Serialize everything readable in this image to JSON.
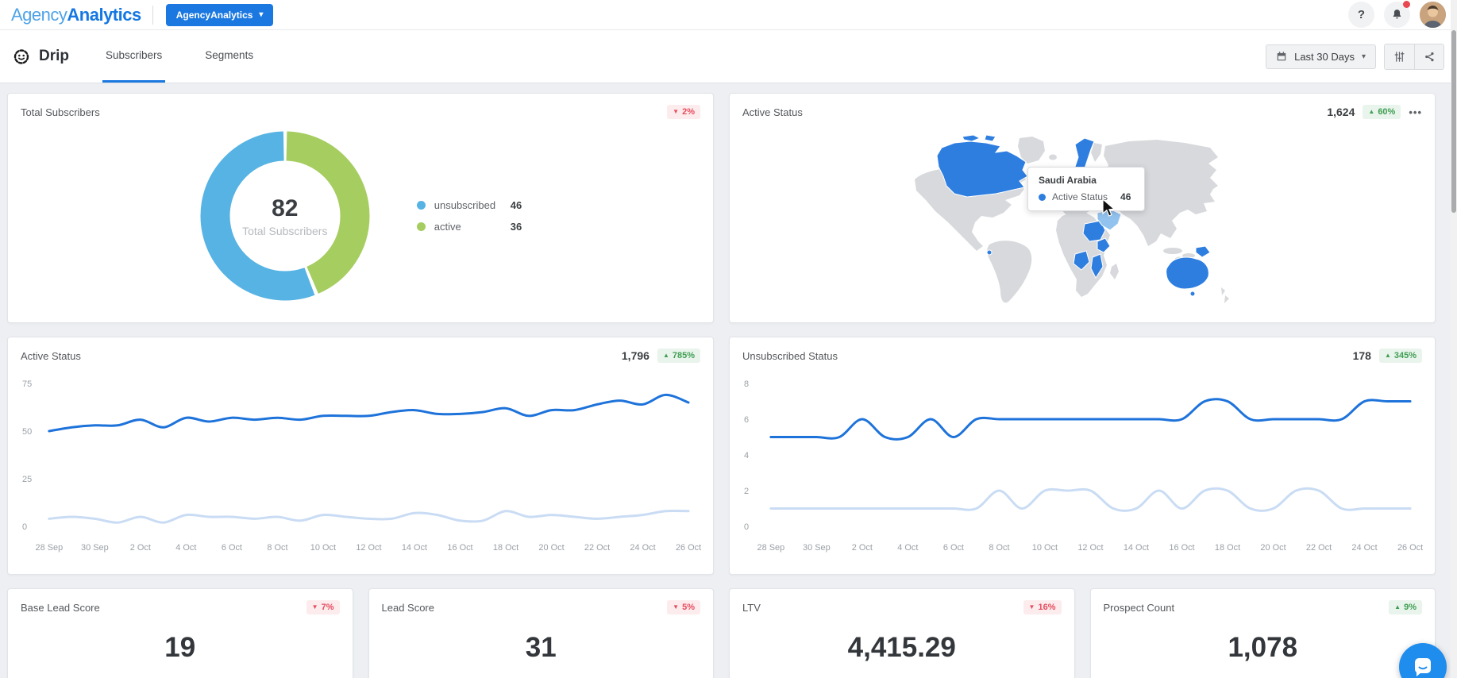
{
  "colors": {
    "accent_blue": "#1b78e0",
    "logo_light": "#4fa3e8",
    "logo_dark": "#1577e2",
    "line_current": "#1e73db",
    "line_previous": "#c9dcf4",
    "donut_unsubscribed": "#56b3e3",
    "donut_active": "#a6cd60",
    "badge_up_text": "#3f9e52",
    "badge_up_bg": "#e9f4ec",
    "badge_down_text": "#e64c5e",
    "badge_down_bg": "#fdeced",
    "map_country": "#d7d9dc",
    "map_active": "#2e7ee0",
    "map_hover": "#92c3ef",
    "page_bg": "#edeff2"
  },
  "icons": {
    "ellipsis": "•••",
    "caret_down": "▾",
    "arrow_up": "▲",
    "arrow_down": "▼"
  },
  "header": {
    "logo_part1": "Agency",
    "logo_part2": "Analytics",
    "account_button": "AgencyAnalytics",
    "help_label": "?"
  },
  "nav": {
    "title": "Drip",
    "tabs": [
      {
        "label": "Subscribers",
        "active": true
      },
      {
        "label": "Segments",
        "active": false
      }
    ],
    "date_range": "Last 30 Days"
  },
  "chart_data": [
    {
      "id": "total_subscribers",
      "type": "pie",
      "donut": true,
      "title": "Total Subscribers",
      "badge": {
        "direction": "down",
        "text": "2%"
      },
      "labels": [
        "unsubscribed",
        "active"
      ],
      "values": [
        46,
        36
      ],
      "colors": [
        "#56b3e3",
        "#a6cd60"
      ],
      "center": {
        "value": "82",
        "label": "Total Subscribers"
      },
      "legend_position": "right"
    },
    {
      "id": "active_status_map",
      "type": "heatmap",
      "subtype": "geo-world-map",
      "title": "Active Status",
      "total": "1,624",
      "badge": {
        "direction": "up",
        "text": "60%"
      },
      "highlighted_countries": [
        "Canada",
        "Norway",
        "Sweden",
        "Sudan",
        "Uganda",
        "Angola",
        "Mozambique",
        "Australia",
        "Papua New Guinea"
      ],
      "hovered_country": "Saudi Arabia",
      "tooltip": {
        "country": "Saudi Arabia",
        "metric": "Active Status",
        "value": "46"
      }
    },
    {
      "id": "active_status_trend",
      "type": "line",
      "title": "Active Status",
      "total": "1,796",
      "badge": {
        "direction": "up",
        "text": "785%"
      },
      "x_labels": [
        "28 Sep",
        "30 Sep",
        "2 Oct",
        "4 Oct",
        "6 Oct",
        "8 Oct",
        "10 Oct",
        "12 Oct",
        "14 Oct",
        "16 Oct",
        "18 Oct",
        "20 Oct",
        "22 Oct",
        "24 Oct",
        "26 Oct"
      ],
      "ylim": [
        0,
        75
      ],
      "yticks": [
        0,
        25,
        50,
        75
      ],
      "grid": false,
      "series": [
        {
          "name": "current",
          "color": "#1e73db",
          "values": [
            50,
            52,
            53,
            53,
            56,
            52,
            57,
            55,
            57,
            56,
            57,
            56,
            58,
            58,
            58,
            60,
            61,
            59,
            59,
            60,
            62,
            58,
            61,
            61,
            64,
            66,
            64,
            69,
            65
          ]
        },
        {
          "name": "previous",
          "color": "#c9dcf4",
          "values": [
            4,
            5,
            4,
            2,
            5,
            2,
            6,
            5,
            5,
            4,
            5,
            3,
            6,
            5,
            4,
            4,
            7,
            6,
            3,
            3,
            8,
            5,
            6,
            5,
            4,
            5,
            6,
            8,
            8
          ]
        }
      ]
    },
    {
      "id": "unsubscribed_status_trend",
      "type": "line",
      "title": "Unsubscribed Status",
      "total": "178",
      "badge": {
        "direction": "up",
        "text": "345%"
      },
      "x_labels": [
        "28 Sep",
        "30 Sep",
        "2 Oct",
        "4 Oct",
        "6 Oct",
        "8 Oct",
        "10 Oct",
        "12 Oct",
        "14 Oct",
        "16 Oct",
        "18 Oct",
        "20 Oct",
        "22 Oct",
        "24 Oct",
        "26 Oct"
      ],
      "ylim": [
        0,
        8
      ],
      "yticks": [
        0,
        2,
        4,
        6,
        8
      ],
      "grid": false,
      "series": [
        {
          "name": "current",
          "color": "#1e73db",
          "values": [
            5,
            5,
            5,
            5,
            6,
            5,
            5,
            6,
            5,
            6,
            6,
            6,
            6,
            6,
            6,
            6,
            6,
            6,
            6,
            7,
            7,
            6,
            6,
            6,
            6,
            6,
            7,
            7,
            7
          ]
        },
        {
          "name": "previous",
          "color": "#c9dcf4",
          "values": [
            1,
            1,
            1,
            1,
            1,
            1,
            1,
            1,
            1,
            1,
            2,
            1,
            2,
            2,
            2,
            1,
            1,
            2,
            1,
            2,
            2,
            1,
            1,
            2,
            2,
            1,
            1,
            1,
            1
          ]
        }
      ]
    }
  ],
  "stat_cards": [
    {
      "title": "Base Lead Score",
      "value": "19",
      "badge": {
        "direction": "down",
        "text": "7%"
      }
    },
    {
      "title": "Lead Score",
      "value": "31",
      "badge": {
        "direction": "down",
        "text": "5%"
      }
    },
    {
      "title": "LTV",
      "value": "4,415.29",
      "badge": {
        "direction": "down",
        "text": "16%"
      }
    },
    {
      "title": "Prospect Count",
      "value": "1,078",
      "badge": {
        "direction": "up",
        "text": "9%"
      }
    }
  ]
}
